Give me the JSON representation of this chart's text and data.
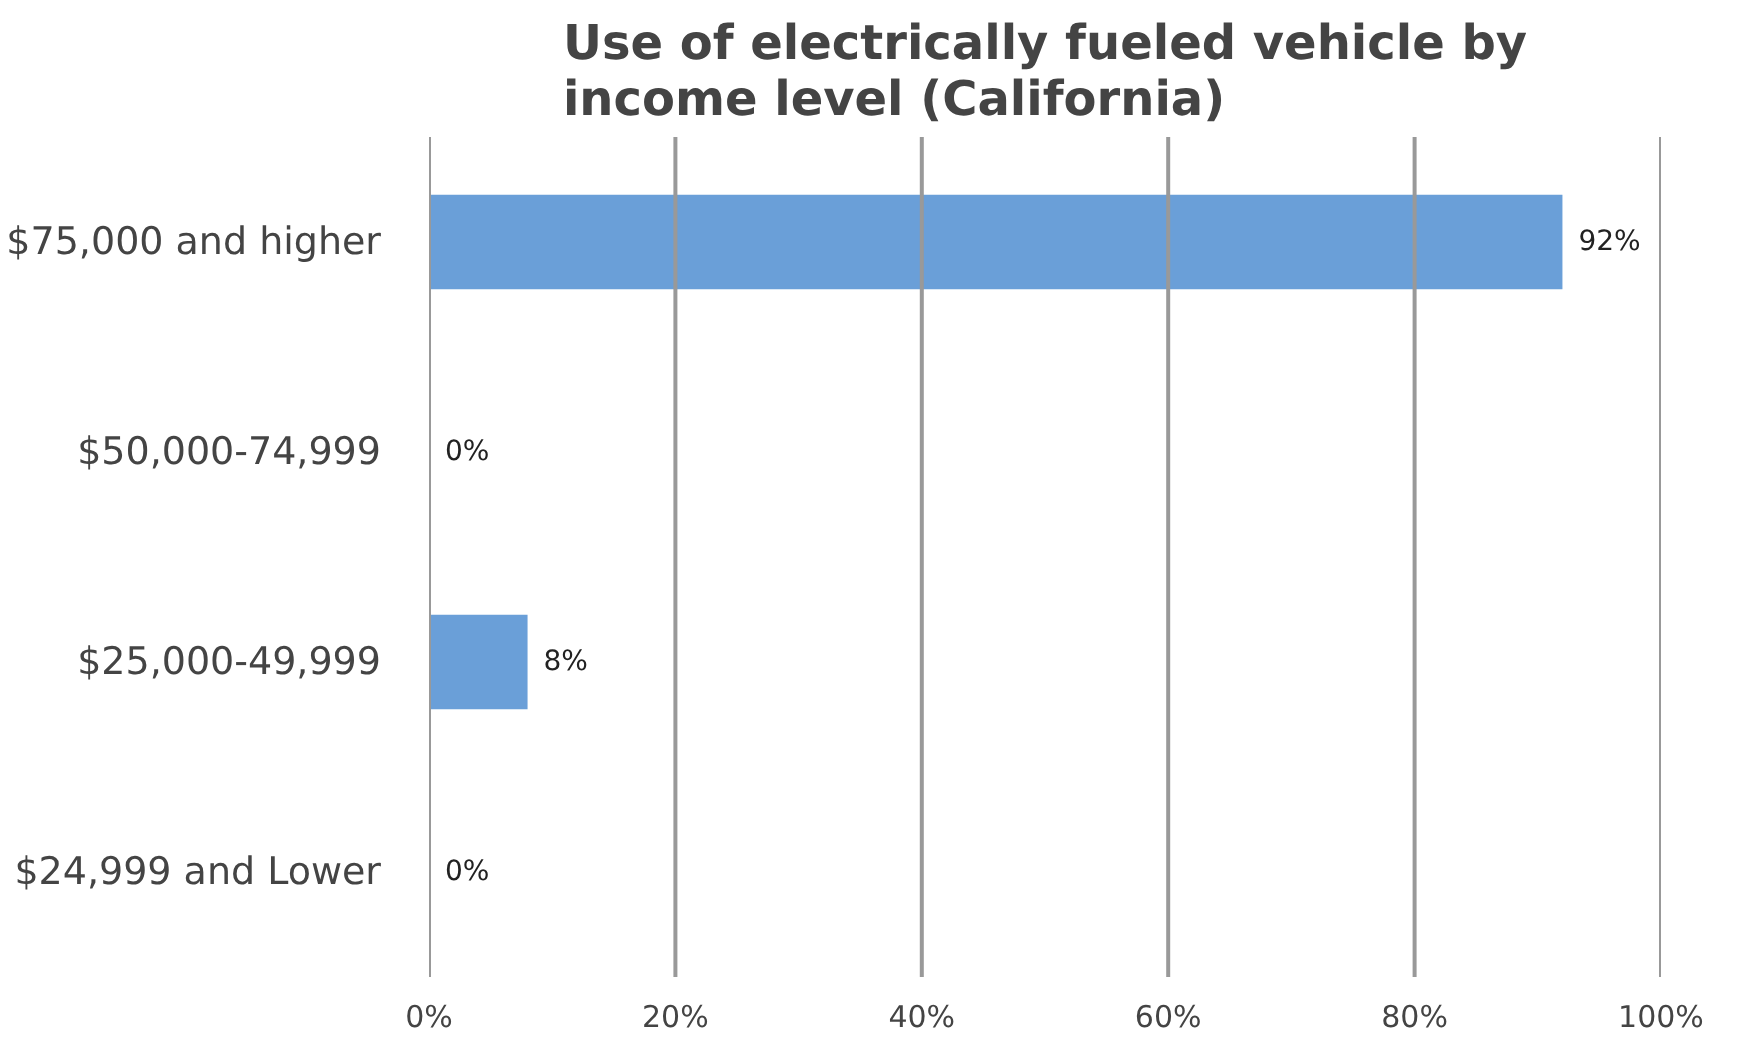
{
  "chart_data": {
    "type": "bar",
    "orientation": "horizontal",
    "title": "Use of electrically fueled vehicle by income level (California)",
    "categories": [
      "$75,000 and higher",
      "$50,000-74,999",
      "$25,000-49,999",
      "$24,999 and Lower"
    ],
    "values": [
      92,
      0,
      8,
      0
    ],
    "value_labels": [
      "92%",
      "0%",
      "8%",
      "0%"
    ],
    "color": "#6a9fd8",
    "xlim": [
      0,
      100
    ],
    "xticks": [
      {
        "value": 0,
        "label": "0%"
      },
      {
        "value": 20,
        "label": "20%"
      },
      {
        "value": 40,
        "label": "40%"
      },
      {
        "value": 60,
        "label": "60%"
      },
      {
        "value": 80,
        "label": "80%"
      },
      {
        "value": 100,
        "label": "100%"
      }
    ],
    "grid": "x"
  }
}
